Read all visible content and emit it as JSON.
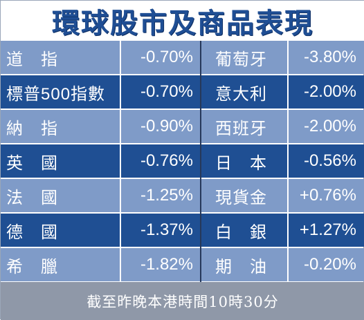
{
  "title": "環球股市及商品表現",
  "rows": [
    {
      "left_name": "道　指",
      "left_change": "-0.70%",
      "right_name": "葡萄牙",
      "right_change": "-3.80%"
    },
    {
      "left_name": "標普500指數",
      "left_change": "-0.70%",
      "right_name": "意大利",
      "right_change": "-2.00%"
    },
    {
      "left_name": "納　指",
      "left_change": "-0.90%",
      "right_name": "西班牙",
      "right_change": "-2.00%"
    },
    {
      "left_name": "英　國",
      "left_change": "-0.76%",
      "right_name": "日　本",
      "right_change": "-0.56%"
    },
    {
      "left_name": "法　國",
      "left_change": "-1.25%",
      "right_name": "現貨金",
      "right_change": "+0.76%"
    },
    {
      "left_name": "德　國",
      "left_change": "-1.37%",
      "right_name": "白　銀",
      "right_change": "+1.27%"
    },
    {
      "left_name": "希　臘",
      "left_change": "-1.82%",
      "right_name": "期　油",
      "right_change": "-0.20%"
    }
  ],
  "footer": "截至昨晚本港時間10時30分",
  "colors": {
    "title_text": "#1f4e94",
    "row_light": "#7f9bc8",
    "row_dark": "#1f4f93",
    "footer_bg": "#8f98a8",
    "cell_text": "#ffffff"
  }
}
